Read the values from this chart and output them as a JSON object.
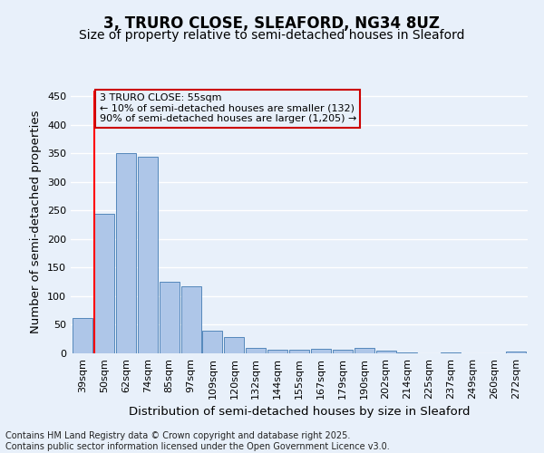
{
  "title": "3, TRURO CLOSE, SLEAFORD, NG34 8UZ",
  "subtitle": "Size of property relative to semi-detached houses in Sleaford",
  "xlabel": "Distribution of semi-detached houses by size in Sleaford",
  "ylabel": "Number of semi-detached properties",
  "bin_labels": [
    "39sqm",
    "50sqm",
    "62sqm",
    "74sqm",
    "85sqm",
    "97sqm",
    "109sqm",
    "120sqm",
    "132sqm",
    "144sqm",
    "155sqm",
    "167sqm",
    "179sqm",
    "190sqm",
    "202sqm",
    "214sqm",
    "225sqm",
    "237sqm",
    "249sqm",
    "260sqm",
    "272sqm"
  ],
  "bar_heights": [
    62,
    245,
    350,
    345,
    125,
    118,
    40,
    28,
    10,
    7,
    7,
    8,
    7,
    9,
    4,
    2,
    0,
    2,
    0,
    0,
    3
  ],
  "bar_color": "#aec6e8",
  "bar_edge_color": "#5588bb",
  "ylim": [
    0,
    460
  ],
  "yticks": [
    0,
    50,
    100,
    150,
    200,
    250,
    300,
    350,
    400,
    450
  ],
  "property_line_x": 1,
  "annotation_line1": "3 TRURO CLOSE: 55sqm",
  "annotation_line2": "← 10% of semi-detached houses are smaller (132)",
  "annotation_line3": "90% of semi-detached houses are larger (1,205) →",
  "annotation_box_color": "#cc0000",
  "footnote1": "Contains HM Land Registry data © Crown copyright and database right 2025.",
  "footnote2": "Contains public sector information licensed under the Open Government Licence v3.0.",
  "background_color": "#e8f0fa",
  "grid_color": "#ffffff",
  "title_fontsize": 12,
  "subtitle_fontsize": 10,
  "axis_label_fontsize": 9.5,
  "tick_fontsize": 8,
  "annotation_fontsize": 8,
  "footnote_fontsize": 7
}
